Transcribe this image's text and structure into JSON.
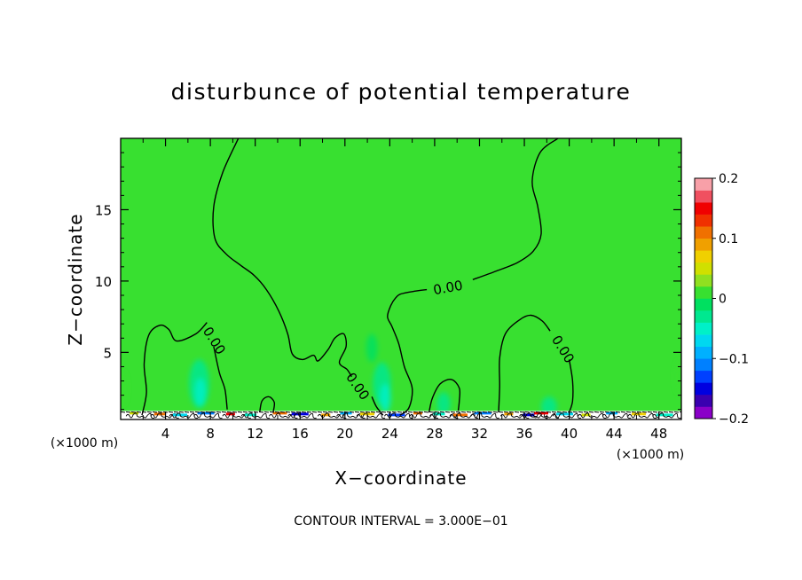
{
  "chart_data": {
    "type": "heatmap",
    "title": "disturbunce of potential temperature",
    "xlabel": "X−coordinate",
    "ylabel": "Z−coordinate",
    "x_unit_left": "(×1000 m)",
    "x_unit_right": "(×1000 m)",
    "footer": "CONTOUR INTERVAL = 3.000E−01",
    "xlim": [
      0,
      50
    ],
    "ylim": [
      0.3,
      20
    ],
    "x_ticks": [
      {
        "value": 4,
        "label": "4"
      },
      {
        "value": 8,
        "label": "8"
      },
      {
        "value": 12,
        "label": "12"
      },
      {
        "value": 16,
        "label": "16"
      },
      {
        "value": 20,
        "label": "20"
      },
      {
        "value": 24,
        "label": "24"
      },
      {
        "value": 28,
        "label": "28"
      },
      {
        "value": 32,
        "label": "32"
      },
      {
        "value": 36,
        "label": "36"
      },
      {
        "value": 40,
        "label": "40"
      },
      {
        "value": 44,
        "label": "44"
      },
      {
        "value": 48,
        "label": "48"
      }
    ],
    "y_ticks": [
      {
        "value": 5,
        "label": "5"
      },
      {
        "value": 10,
        "label": "10"
      },
      {
        "value": 15,
        "label": "15"
      }
    ],
    "colorbar": {
      "min": -0.2,
      "max": 0.2,
      "ticks": [
        {
          "value": 0.2,
          "label": "0.2"
        },
        {
          "value": 0.1,
          "label": "0.1"
        },
        {
          "value": 0,
          "label": "0"
        },
        {
          "value": -0.1,
          "label": "−0.1"
        },
        {
          "value": -0.2,
          "label": "−0.2"
        }
      ],
      "colors": [
        "#8a00c8",
        "#3a00b0",
        "#0000e0",
        "#0040ff",
        "#0080ff",
        "#00b0ff",
        "#00d8f0",
        "#00f0c8",
        "#00e890",
        "#00e060",
        "#38e030",
        "#90e020",
        "#d0e000",
        "#f0d000",
        "#f0a000",
        "#f07000",
        "#f03000",
        "#f00000",
        "#f05060",
        "#f8a0a8"
      ]
    },
    "background_value": 0.0,
    "contour_labels": [
      {
        "x": 8.3,
        "z": 5.8,
        "label": "0.00"
      },
      {
        "x": 21.1,
        "z": 2.6,
        "label": "0.00"
      },
      {
        "x": 29.2,
        "z": 9.5,
        "label": "0.00"
      },
      {
        "x": 39.4,
        "z": 5.2,
        "label": "0.00"
      }
    ],
    "contours": [
      {
        "name": "contour-left-bump",
        "points": [
          [
            1.9,
            0.6
          ],
          [
            2.3,
            2.2
          ],
          [
            2.1,
            4.2
          ],
          [
            2.5,
            6.2
          ],
          [
            3.5,
            6.9
          ],
          [
            4.3,
            6.6
          ],
          [
            5.0,
            5.8
          ],
          [
            6.7,
            6.3
          ],
          [
            7.7,
            7.1
          ]
        ]
      },
      {
        "name": "contour-left-bump-lower",
        "points": [
          [
            8.3,
            5.4
          ],
          [
            8.8,
            3.6
          ],
          [
            9.3,
            2.4
          ],
          [
            9.5,
            1.0
          ]
        ]
      },
      {
        "name": "contour-main-upper-left",
        "points": [
          [
            10.5,
            20.0
          ],
          [
            9.1,
            17.6
          ],
          [
            8.3,
            15.2
          ],
          [
            8.4,
            13.0
          ],
          [
            9.4,
            11.9
          ],
          [
            10.7,
            11.1
          ],
          [
            11.9,
            10.4
          ],
          [
            13.0,
            9.4
          ],
          [
            14.1,
            7.9
          ],
          [
            14.9,
            6.3
          ],
          [
            15.3,
            4.9
          ],
          [
            16.2,
            4.5
          ],
          [
            17.2,
            4.8
          ],
          [
            17.6,
            4.4
          ],
          [
            18.5,
            5.2
          ],
          [
            19.1,
            6.0
          ],
          [
            19.9,
            6.3
          ],
          [
            20.1,
            5.4
          ],
          [
            19.5,
            4.3
          ],
          [
            20.2,
            3.8
          ],
          [
            20.6,
            3.3
          ]
        ]
      },
      {
        "name": "contour-main-lower-mid",
        "points": [
          [
            22.4,
            1.9
          ],
          [
            22.8,
            1.2
          ],
          [
            23.4,
            0.6
          ]
        ]
      },
      {
        "name": "contour-main-right",
        "points": [
          [
            24.9,
            0.6
          ],
          [
            25.7,
            1.1
          ],
          [
            26.0,
            2.5
          ],
          [
            25.3,
            4.0
          ],
          [
            24.8,
            5.6
          ],
          [
            24.2,
            6.8
          ],
          [
            23.8,
            7.5
          ],
          [
            24.1,
            8.3
          ],
          [
            24.5,
            8.8
          ],
          [
            25.0,
            9.1
          ],
          [
            26.3,
            9.3
          ],
          [
            27.3,
            9.4
          ]
        ]
      },
      {
        "name": "contour-main-upper-right",
        "points": [
          [
            31.4,
            10.1
          ],
          [
            33.5,
            10.7
          ],
          [
            35.4,
            11.3
          ],
          [
            36.8,
            12.1
          ],
          [
            37.5,
            13.3
          ],
          [
            37.2,
            15.2
          ],
          [
            36.7,
            17.0
          ],
          [
            37.4,
            19.0
          ],
          [
            39.0,
            20.0
          ]
        ]
      },
      {
        "name": "contour-small-13",
        "points": [
          [
            12.4,
            0.8
          ],
          [
            12.6,
            1.6
          ],
          [
            13.2,
            1.9
          ],
          [
            13.7,
            1.5
          ],
          [
            13.6,
            0.8
          ]
        ]
      },
      {
        "name": "contour-bump-29",
        "points": [
          [
            27.5,
            0.8
          ],
          [
            27.8,
            1.8
          ],
          [
            28.5,
            2.8
          ],
          [
            29.5,
            3.1
          ],
          [
            30.2,
            2.5
          ],
          [
            30.2,
            1.6
          ],
          [
            30.1,
            0.9
          ]
        ]
      },
      {
        "name": "contour-right-bump-left",
        "points": [
          [
            33.7,
            0.8
          ],
          [
            33.8,
            2.6
          ],
          [
            33.8,
            4.6
          ],
          [
            34.3,
            6.3
          ],
          [
            35.6,
            7.3
          ],
          [
            36.6,
            7.6
          ],
          [
            37.6,
            7.2
          ],
          [
            38.3,
            6.5
          ]
        ]
      },
      {
        "name": "contour-right-bump-right",
        "points": [
          [
            40.0,
            4.5
          ],
          [
            40.3,
            3.0
          ],
          [
            40.3,
            1.6
          ],
          [
            40.0,
            0.8
          ]
        ]
      }
    ],
    "anomalies": [
      {
        "x": 7.0,
        "z": 2.8,
        "rx": 0.9,
        "rz": 1.7,
        "value": -0.03
      },
      {
        "x": 7.1,
        "z": 2.2,
        "rx": 0.5,
        "rz": 1.0,
        "value": -0.06
      },
      {
        "x": 22.4,
        "z": 5.3,
        "rx": 0.5,
        "rz": 1.0,
        "value": -0.02
      },
      {
        "x": 23.3,
        "z": 2.8,
        "rx": 0.8,
        "rz": 1.5,
        "value": -0.03
      },
      {
        "x": 23.6,
        "z": 1.8,
        "rx": 0.5,
        "rz": 1.0,
        "value": -0.05
      },
      {
        "x": 28.8,
        "z": 1.4,
        "rx": 0.6,
        "rz": 0.8,
        "value": -0.03
      },
      {
        "x": 38.2,
        "z": 1.2,
        "rx": 0.7,
        "rz": 0.7,
        "value": -0.03
      },
      {
        "x": 0.2,
        "z": 2.5,
        "rx": 0.4,
        "rz": 1.2,
        "value": 0.02
      },
      {
        "x": 49.8,
        "z": 3.3,
        "rx": 0.4,
        "rz": 1.2,
        "value": 0.02
      }
    ],
    "surface_layer": {
      "z_top": 0.9,
      "spots": [
        {
          "x": 1.2,
          "value": 0.05
        },
        {
          "x": 3.5,
          "value": 0.12
        },
        {
          "x": 5.3,
          "value": -0.08
        },
        {
          "x": 7.6,
          "value": -0.12
        },
        {
          "x": 9.8,
          "value": 0.14
        },
        {
          "x": 11.6,
          "value": -0.05
        },
        {
          "x": 14.2,
          "value": 0.1
        },
        {
          "x": 16.0,
          "value": -0.15
        },
        {
          "x": 18.3,
          "value": 0.08
        },
        {
          "x": 20.1,
          "value": -0.1
        },
        {
          "x": 22.0,
          "value": 0.06
        },
        {
          "x": 24.6,
          "value": -0.13
        },
        {
          "x": 26.5,
          "value": 0.12
        },
        {
          "x": 28.4,
          "value": -0.06
        },
        {
          "x": 30.3,
          "value": 0.1
        },
        {
          "x": 32.3,
          "value": -0.11
        },
        {
          "x": 34.6,
          "value": 0.09
        },
        {
          "x": 36.4,
          "value": -0.16
        },
        {
          "x": 37.5,
          "value": 0.15
        },
        {
          "x": 39.6,
          "value": -0.07
        },
        {
          "x": 41.5,
          "value": 0.05
        },
        {
          "x": 43.8,
          "value": -0.09
        },
        {
          "x": 46.2,
          "value": 0.07
        },
        {
          "x": 48.5,
          "value": -0.05
        }
      ]
    }
  }
}
